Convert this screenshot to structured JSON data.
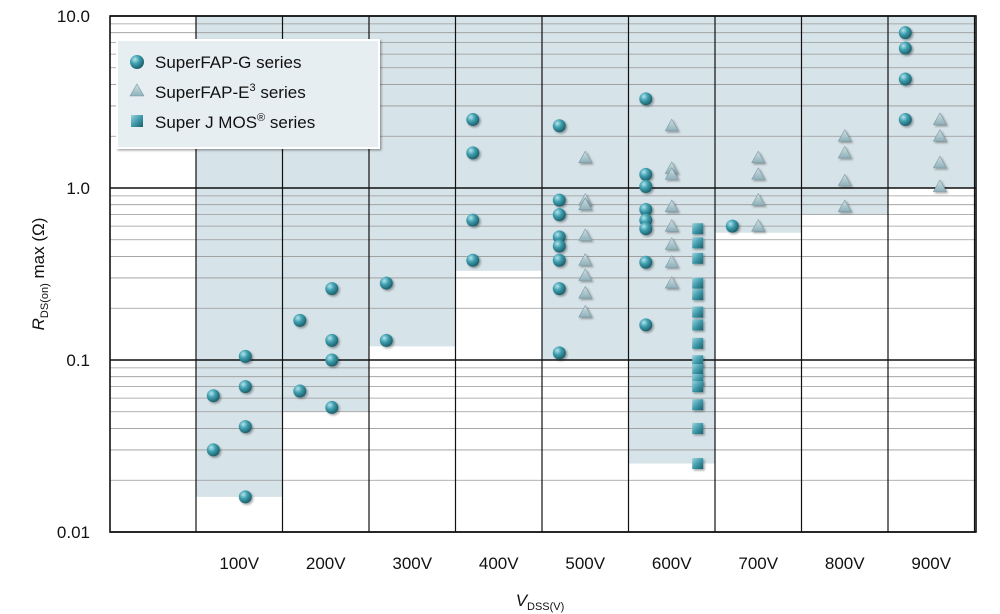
{
  "chart_data": {
    "type": "scatter",
    "y_scale": "log",
    "ylim": [
      0.01,
      10
    ],
    "grid": true,
    "x_categories": [
      "100V",
      "200V",
      "300V",
      "400V",
      "500V",
      "600V",
      "700V",
      "800V",
      "900V"
    ],
    "y_ticks": [
      "10.0",
      "1.0",
      "0.1",
      "0.01"
    ],
    "y_tick_values": [
      10,
      1,
      0.1,
      0.01
    ],
    "xlabel": {
      "main": "V",
      "sub": "DSS(V)"
    },
    "ylabel": {
      "main": "R",
      "sub": "DS(on)",
      "rest": " max (Ω)"
    },
    "legend": {
      "placement": "top-left",
      "items": [
        {
          "key": "g",
          "marker": "circle",
          "pre": "SuperFAP-G series",
          "sup": "",
          "post": ""
        },
        {
          "key": "e3",
          "marker": "triangle",
          "pre": "SuperFAP-E",
          "sup": "3",
          "post": " series"
        },
        {
          "key": "j",
          "marker": "square",
          "pre": "Super J MOS",
          "sup": "®",
          "post": " series"
        }
      ]
    },
    "coverage_band": [
      {
        "category": "100V",
        "bottom": 0.016
      },
      {
        "category": "200V",
        "bottom": 0.05
      },
      {
        "category": "300V",
        "bottom": 0.12
      },
      {
        "category": "400V",
        "bottom": 0.33
      },
      {
        "category": "500V",
        "bottom": 0.1
      },
      {
        "category": "600V",
        "bottom": 0.025
      },
      {
        "category": "700V",
        "bottom": 0.55
      },
      {
        "category": "800V",
        "bottom": 0.7
      },
      {
        "category": "900V",
        "bottom": 1.0
      }
    ],
    "series": [
      {
        "key": "g",
        "points": [
          {
            "x": "100V",
            "offset": -0.3,
            "y": 0.062
          },
          {
            "x": "100V",
            "offset": -0.3,
            "y": 0.03
          },
          {
            "x": "100V",
            "offset": 0.07,
            "y": 0.105
          },
          {
            "x": "100V",
            "offset": 0.07,
            "y": 0.07
          },
          {
            "x": "100V",
            "offset": 0.07,
            "y": 0.041
          },
          {
            "x": "100V",
            "offset": 0.07,
            "y": 0.016
          },
          {
            "x": "200V",
            "offset": -0.3,
            "y": 0.17
          },
          {
            "x": "200V",
            "offset": -0.3,
            "y": 0.066
          },
          {
            "x": "200V",
            "offset": 0.07,
            "y": 0.26
          },
          {
            "x": "200V",
            "offset": 0.07,
            "y": 0.13
          },
          {
            "x": "200V",
            "offset": 0.07,
            "y": 0.1
          },
          {
            "x": "200V",
            "offset": 0.07,
            "y": 0.053
          },
          {
            "x": "300V",
            "offset": -0.3,
            "y": 0.28
          },
          {
            "x": "300V",
            "offset": -0.3,
            "y": 0.13
          },
          {
            "x": "400V",
            "offset": -0.3,
            "y": 2.5
          },
          {
            "x": "400V",
            "offset": -0.3,
            "y": 1.6
          },
          {
            "x": "400V",
            "offset": -0.3,
            "y": 0.65
          },
          {
            "x": "400V",
            "offset": -0.3,
            "y": 0.38
          },
          {
            "x": "500V",
            "offset": -0.3,
            "y": 2.3
          },
          {
            "x": "500V",
            "offset": -0.3,
            "y": 0.85
          },
          {
            "x": "500V",
            "offset": -0.3,
            "y": 0.7
          },
          {
            "x": "500V",
            "offset": -0.3,
            "y": 0.52
          },
          {
            "x": "500V",
            "offset": -0.3,
            "y": 0.46
          },
          {
            "x": "500V",
            "offset": -0.3,
            "y": 0.38
          },
          {
            "x": "500V",
            "offset": -0.3,
            "y": 0.26
          },
          {
            "x": "500V",
            "offset": -0.3,
            "y": 0.11
          },
          {
            "x": "600V",
            "offset": -0.3,
            "y": 3.3
          },
          {
            "x": "600V",
            "offset": -0.3,
            "y": 1.2
          },
          {
            "x": "600V",
            "offset": -0.3,
            "y": 1.02
          },
          {
            "x": "600V",
            "offset": -0.3,
            "y": 0.75
          },
          {
            "x": "600V",
            "offset": -0.3,
            "y": 0.65
          },
          {
            "x": "600V",
            "offset": -0.3,
            "y": 0.58
          },
          {
            "x": "600V",
            "offset": -0.3,
            "y": 0.37
          },
          {
            "x": "600V",
            "offset": -0.3,
            "y": 0.16
          },
          {
            "x": "700V",
            "offset": -0.3,
            "y": 0.6
          },
          {
            "x": "900V",
            "offset": -0.3,
            "y": 8.0
          },
          {
            "x": "900V",
            "offset": -0.3,
            "y": 6.5
          },
          {
            "x": "900V",
            "offset": -0.3,
            "y": 4.3
          },
          {
            "x": "900V",
            "offset": -0.3,
            "y": 2.5
          }
        ]
      },
      {
        "key": "e3",
        "points": [
          {
            "x": "500V",
            "offset": 0.0,
            "y": 1.5
          },
          {
            "x": "500V",
            "offset": 0.0,
            "y": 0.85
          },
          {
            "x": "500V",
            "offset": 0.0,
            "y": 0.8
          },
          {
            "x": "500V",
            "offset": 0.0,
            "y": 0.53
          },
          {
            "x": "500V",
            "offset": 0.0,
            "y": 0.38
          },
          {
            "x": "500V",
            "offset": 0.0,
            "y": 0.31
          },
          {
            "x": "500V",
            "offset": 0.0,
            "y": 0.245
          },
          {
            "x": "500V",
            "offset": 0.0,
            "y": 0.19
          },
          {
            "x": "600V",
            "offset": 0.0,
            "y": 2.3
          },
          {
            "x": "600V",
            "offset": 0.0,
            "y": 1.3
          },
          {
            "x": "600V",
            "offset": 0.0,
            "y": 1.2
          },
          {
            "x": "600V",
            "offset": 0.0,
            "y": 0.78
          },
          {
            "x": "600V",
            "offset": 0.0,
            "y": 0.6
          },
          {
            "x": "600V",
            "offset": 0.0,
            "y": 0.47
          },
          {
            "x": "600V",
            "offset": 0.0,
            "y": 0.37
          },
          {
            "x": "600V",
            "offset": 0.0,
            "y": 0.28
          },
          {
            "x": "700V",
            "offset": 0.0,
            "y": 1.5
          },
          {
            "x": "700V",
            "offset": 0.0,
            "y": 1.2
          },
          {
            "x": "700V",
            "offset": 0.0,
            "y": 0.85
          },
          {
            "x": "700V",
            "offset": 0.0,
            "y": 0.6
          },
          {
            "x": "800V",
            "offset": 0.0,
            "y": 2.0
          },
          {
            "x": "800V",
            "offset": 0.0,
            "y": 1.6
          },
          {
            "x": "800V",
            "offset": 0.0,
            "y": 1.1
          },
          {
            "x": "800V",
            "offset": 0.0,
            "y": 0.78
          },
          {
            "x": "900V",
            "offset": 0.1,
            "y": 2.5
          },
          {
            "x": "900V",
            "offset": 0.1,
            "y": 2.0
          },
          {
            "x": "900V",
            "offset": 0.1,
            "y": 1.4
          },
          {
            "x": "900V",
            "offset": 0.1,
            "y": 1.02
          }
        ]
      },
      {
        "key": "j",
        "points": [
          {
            "x": "600V",
            "offset": 0.3,
            "y": 0.58
          },
          {
            "x": "600V",
            "offset": 0.3,
            "y": 0.48
          },
          {
            "x": "600V",
            "offset": 0.3,
            "y": 0.39
          },
          {
            "x": "600V",
            "offset": 0.3,
            "y": 0.28
          },
          {
            "x": "600V",
            "offset": 0.3,
            "y": 0.24
          },
          {
            "x": "600V",
            "offset": 0.3,
            "y": 0.19
          },
          {
            "x": "600V",
            "offset": 0.3,
            "y": 0.16
          },
          {
            "x": "600V",
            "offset": 0.3,
            "y": 0.125
          },
          {
            "x": "600V",
            "offset": 0.3,
            "y": 0.099
          },
          {
            "x": "600V",
            "offset": 0.3,
            "y": 0.088
          },
          {
            "x": "600V",
            "offset": 0.3,
            "y": 0.077
          },
          {
            "x": "600V",
            "offset": 0.3,
            "y": 0.07
          },
          {
            "x": "600V",
            "offset": 0.3,
            "y": 0.055
          },
          {
            "x": "600V",
            "offset": 0.3,
            "y": 0.04
          },
          {
            "x": "600V",
            "offset": 0.3,
            "y": 0.025
          }
        ]
      }
    ]
  },
  "colors": {
    "band_fill": "#d6e3e8",
    "grid_major": "#111111",
    "grid_minor": "#999999",
    "marker_fill": "#2f8e9e",
    "marker_light": "#b5e4ec",
    "marker_dark": "#1c5e6a",
    "triangle_fill": "#a9c4cc",
    "legend_bg": "#e6eef1",
    "legend_border": "#ffffff"
  }
}
